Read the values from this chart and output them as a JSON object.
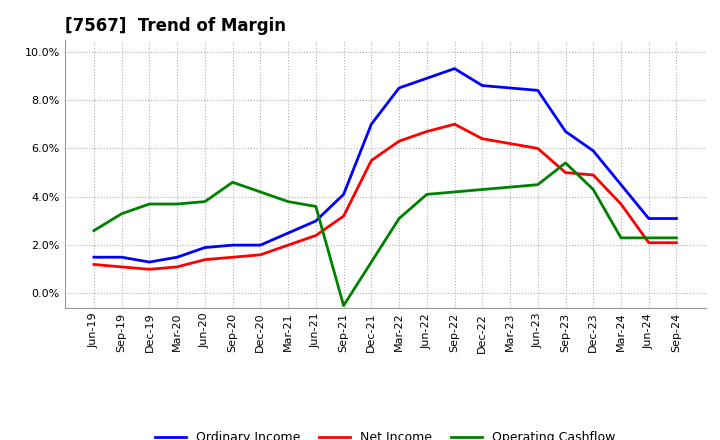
{
  "title": "[7567]  Trend of Margin",
  "x_labels": [
    "Jun-19",
    "Sep-19",
    "Dec-19",
    "Mar-20",
    "Jun-20",
    "Sep-20",
    "Dec-20",
    "Mar-21",
    "Jun-21",
    "Sep-21",
    "Dec-21",
    "Mar-22",
    "Jun-22",
    "Sep-22",
    "Dec-22",
    "Mar-23",
    "Jun-23",
    "Sep-23",
    "Dec-23",
    "Mar-24",
    "Jun-24",
    "Sep-24"
  ],
  "ordinary_income": [
    1.5,
    1.5,
    1.3,
    1.5,
    1.9,
    2.0,
    2.0,
    2.5,
    3.0,
    4.1,
    7.0,
    8.5,
    8.9,
    9.3,
    8.6,
    8.5,
    8.4,
    6.7,
    5.9,
    4.5,
    3.1,
    3.1
  ],
  "net_income": [
    1.2,
    1.1,
    1.0,
    1.1,
    1.4,
    1.5,
    1.6,
    2.0,
    2.4,
    3.2,
    5.5,
    6.3,
    6.7,
    7.0,
    6.4,
    6.2,
    6.0,
    5.0,
    4.9,
    3.7,
    2.1,
    2.1
  ],
  "operating_cashflow": [
    2.6,
    3.3,
    3.7,
    3.7,
    3.8,
    4.6,
    4.2,
    3.8,
    3.6,
    -0.5,
    1.3,
    3.1,
    4.1,
    4.2,
    4.3,
    4.4,
    4.5,
    5.4,
    4.3,
    2.3,
    2.3,
    2.3
  ],
  "ylim": [
    -0.6,
    10.5
  ],
  "yticks": [
    0.0,
    2.0,
    4.0,
    6.0,
    8.0,
    10.0
  ],
  "colors": {
    "ordinary_income": "#0000ff",
    "net_income": "#ff0000",
    "operating_cashflow": "#008000"
  },
  "line_width": 2.0,
  "background_color": "#ffffff",
  "plot_bg_color": "#ffffff",
  "grid_color": "#b0b0b0",
  "title_fontsize": 12,
  "legend_fontsize": 9,
  "tick_fontsize": 8
}
